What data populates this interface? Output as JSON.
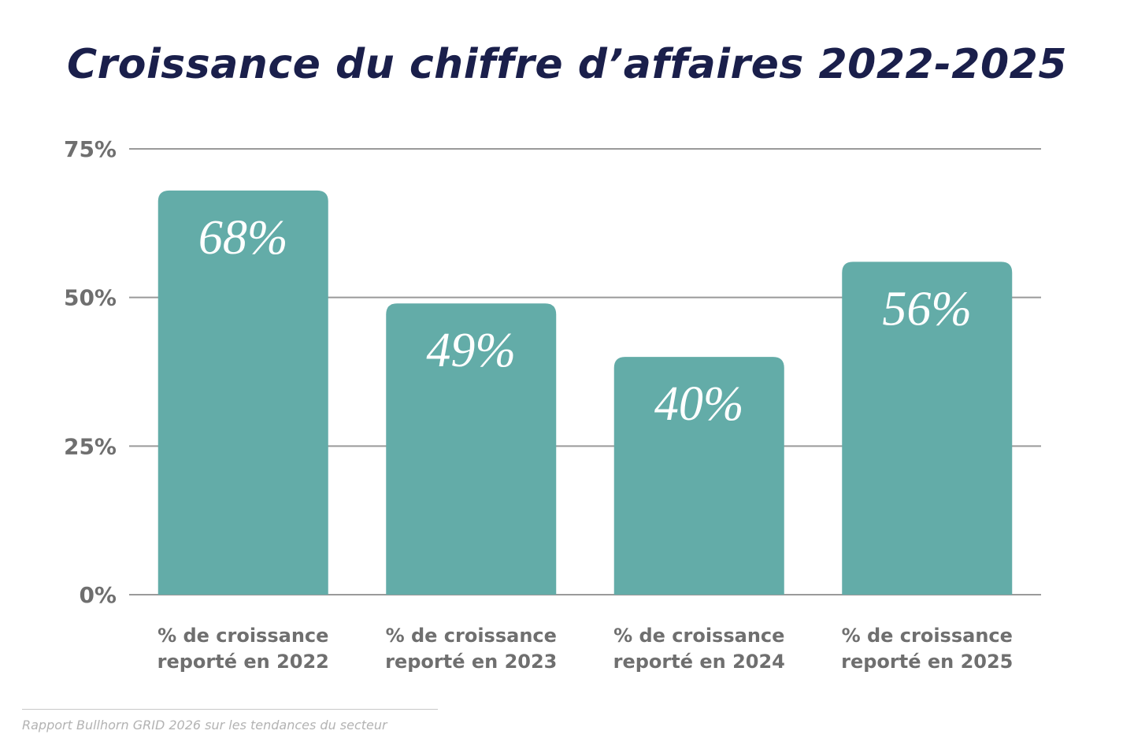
{
  "chart_data": {
    "type": "bar",
    "title": "Croissance du chiffre d’affaires 2022-2025",
    "categories": [
      [
        "% de croissance",
        "reporté en 2022"
      ],
      [
        "% de croissance",
        "reporté en 2023"
      ],
      [
        "% de croissance",
        "reporté en 2024"
      ],
      [
        "% de croissance",
        "reporté en 2025"
      ]
    ],
    "values": [
      68,
      49,
      40,
      56
    ],
    "data_labels": [
      "68%",
      "49%",
      "40%",
      "56%"
    ],
    "ylim": [
      0,
      75
    ],
    "yticks": [
      0,
      25,
      50,
      75
    ],
    "ytick_labels": [
      "0%",
      "25%",
      "50%",
      "75%"
    ],
    "grid": true,
    "bar_color": "#63aca8",
    "grid_color": "#9a9a9a"
  },
  "source": "Rapport Bullhorn GRID 2026 sur les tendances du secteur"
}
